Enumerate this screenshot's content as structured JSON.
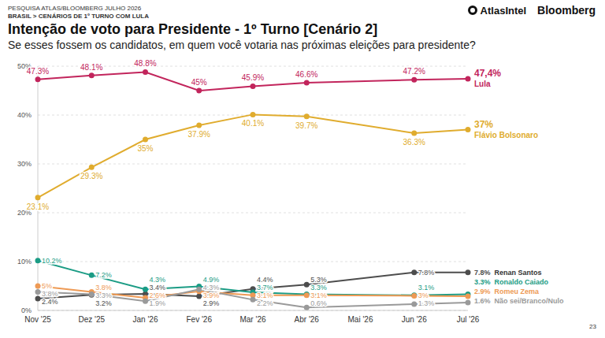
{
  "header": {
    "survey": "PESQUISA ATLAS/BLOOMBERG JULHO 2026",
    "breadcrumb": "BRASIL > CENÁRIOS DE 1º TURNO COM LULA",
    "logos": [
      "AtlasIntel",
      "Bloomberg"
    ],
    "page": "23"
  },
  "chart_data": {
    "type": "line",
    "title": "Intenção de voto para Presidente - 1º Turno [Cenário 2]",
    "subtitle": "Se esses fossem os candidatos, em quem você votaria nas próximas eleições para presidente?",
    "categories": [
      "Nov '25",
      "Dez '25",
      "Jan '26",
      "Fev '26",
      "Mar '26",
      "Abr '26",
      "Mai '26",
      "Jun '26",
      "Jul '26"
    ],
    "series": [
      {
        "name": "Lula",
        "color": "#c2255c",
        "values": [
          47.3,
          48.1,
          48.8,
          45,
          45.9,
          46.6,
          null,
          47.2,
          47.4
        ],
        "value_labels": [
          "47.3%",
          "48.1%",
          "48.8%",
          "45%",
          "45.9%",
          "46.6%",
          null,
          "47.2%",
          "47,4%"
        ]
      },
      {
        "name": "Flávio Bolsonaro",
        "color": "#e0ac2e",
        "values": [
          23.1,
          29.3,
          35,
          37.9,
          40.1,
          39.7,
          null,
          36.3,
          37
        ],
        "value_labels": [
          "23.1%",
          "29.3%",
          "35%",
          "37.9%",
          "40.1%",
          "39.7%",
          null,
          "36.3%",
          "37%"
        ]
      },
      {
        "name": "Renan Santos",
        "color": "#4d4d4d",
        "values": [
          2.4,
          3.2,
          3.4,
          2.9,
          4.4,
          5.3,
          null,
          7.8,
          7.8
        ],
        "value_labels": [
          "2.4%",
          "3.2%",
          "3.4%",
          "2.9%",
          "4.4%",
          "5.3%",
          null,
          "7.8%",
          "7.8%"
        ]
      },
      {
        "name": "Ronaldo Caiado",
        "color": "#1b9c85",
        "values": [
          10.2,
          7.2,
          4.3,
          4.9,
          3.7,
          3.3,
          null,
          3.1,
          3.3
        ],
        "value_labels": [
          "10.2%",
          "7.2%",
          "4.3%",
          "4.9%",
          "3.7%",
          "3.3%",
          null,
          "3.1%",
          "3.3%"
        ]
      },
      {
        "name": "Romeu Zema",
        "color": "#ee9a55",
        "values": [
          5,
          3.8,
          2.6,
          3.9,
          3.1,
          3.1,
          null,
          3,
          2.9
        ],
        "value_labels": [
          "5%",
          "3.8%",
          "2.6%",
          "3.9%",
          "3.1%",
          "3.1%",
          null,
          "3%",
          "2.9%"
        ]
      },
      {
        "name": "Não sei/Branco/Nulo",
        "color": "#9a9a9a",
        "values": [
          3.8,
          3.3,
          1.9,
          4.3,
          2.2,
          0.6,
          null,
          1.3,
          1.6
        ],
        "value_labels": [
          "3.8%",
          "3.3%",
          "1.9%",
          "4.3%",
          "2.2%",
          "0.6%",
          null,
          "1.3%",
          "1.6%"
        ]
      }
    ],
    "ylim": [
      0,
      50
    ],
    "yticks": [
      {
        "value": 0,
        "label": "0%"
      },
      {
        "value": 10,
        "label": "10%"
      },
      {
        "value": 20,
        "label": "20%"
      },
      {
        "value": 30,
        "label": "30%"
      },
      {
        "value": 40,
        "label": "40%"
      },
      {
        "value": 50,
        "label": "50%"
      }
    ],
    "grid": true,
    "data_labels": true,
    "marker": "circle"
  }
}
